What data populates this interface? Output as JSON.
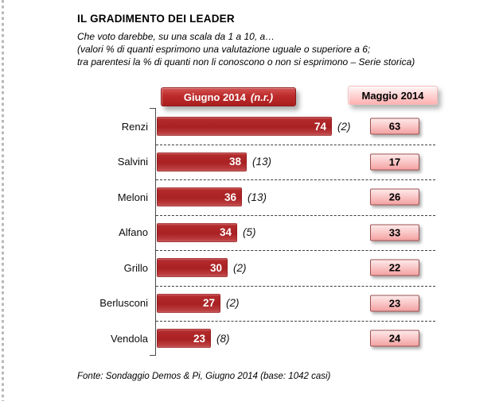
{
  "header": {
    "title": "IL GRADIMENTO DEI LEADER",
    "subtitle_lines": [
      "Che voto darebbe, su una scala da 1 a 10, a…",
      "(valori % di quanti esprimono una valutazione uguale o superiore a 6;",
      "tra parentesi la % di quanti non li conoscono o non si esprimono – Serie storica)"
    ]
  },
  "legend": {
    "june_label": "Giugno 2014",
    "june_suffix": "(n.r.)",
    "may_label": "Maggio 2014"
  },
  "chart_data": {
    "type": "bar",
    "orientation": "horizontal",
    "title": "IL GRADIMENTO DEI LEADER",
    "categories": [
      "Renzi",
      "Salvini",
      "Meloni",
      "Alfano",
      "Grillo",
      "Berlusconi",
      "Vendola"
    ],
    "series": [
      {
        "name": "Giugno 2014 (n.r.)",
        "values": [
          74,
          38,
          36,
          34,
          30,
          27,
          23
        ],
        "notes_pct_non_expressed": [
          2,
          13,
          13,
          5,
          2,
          2,
          8
        ]
      },
      {
        "name": "Maggio 2014",
        "values": [
          63,
          17,
          26,
          33,
          22,
          23,
          24
        ]
      }
    ],
    "xlim": [
      0,
      100
    ],
    "value_labels": true,
    "grid": "dashed-row-separators",
    "legend_position": "top"
  },
  "footer": {
    "source": "Fonte: Sondaggio Demos & Pi, Giugno 2014 (base: 1042 casi)"
  },
  "colors": {
    "bar_red": "#ad2426",
    "button_red": "#bb2a2a",
    "pink_button": "#ffc9c9",
    "pink_box": "#f7b5b5",
    "box_border": "#9c5152",
    "axis": "#4a4a4a"
  }
}
